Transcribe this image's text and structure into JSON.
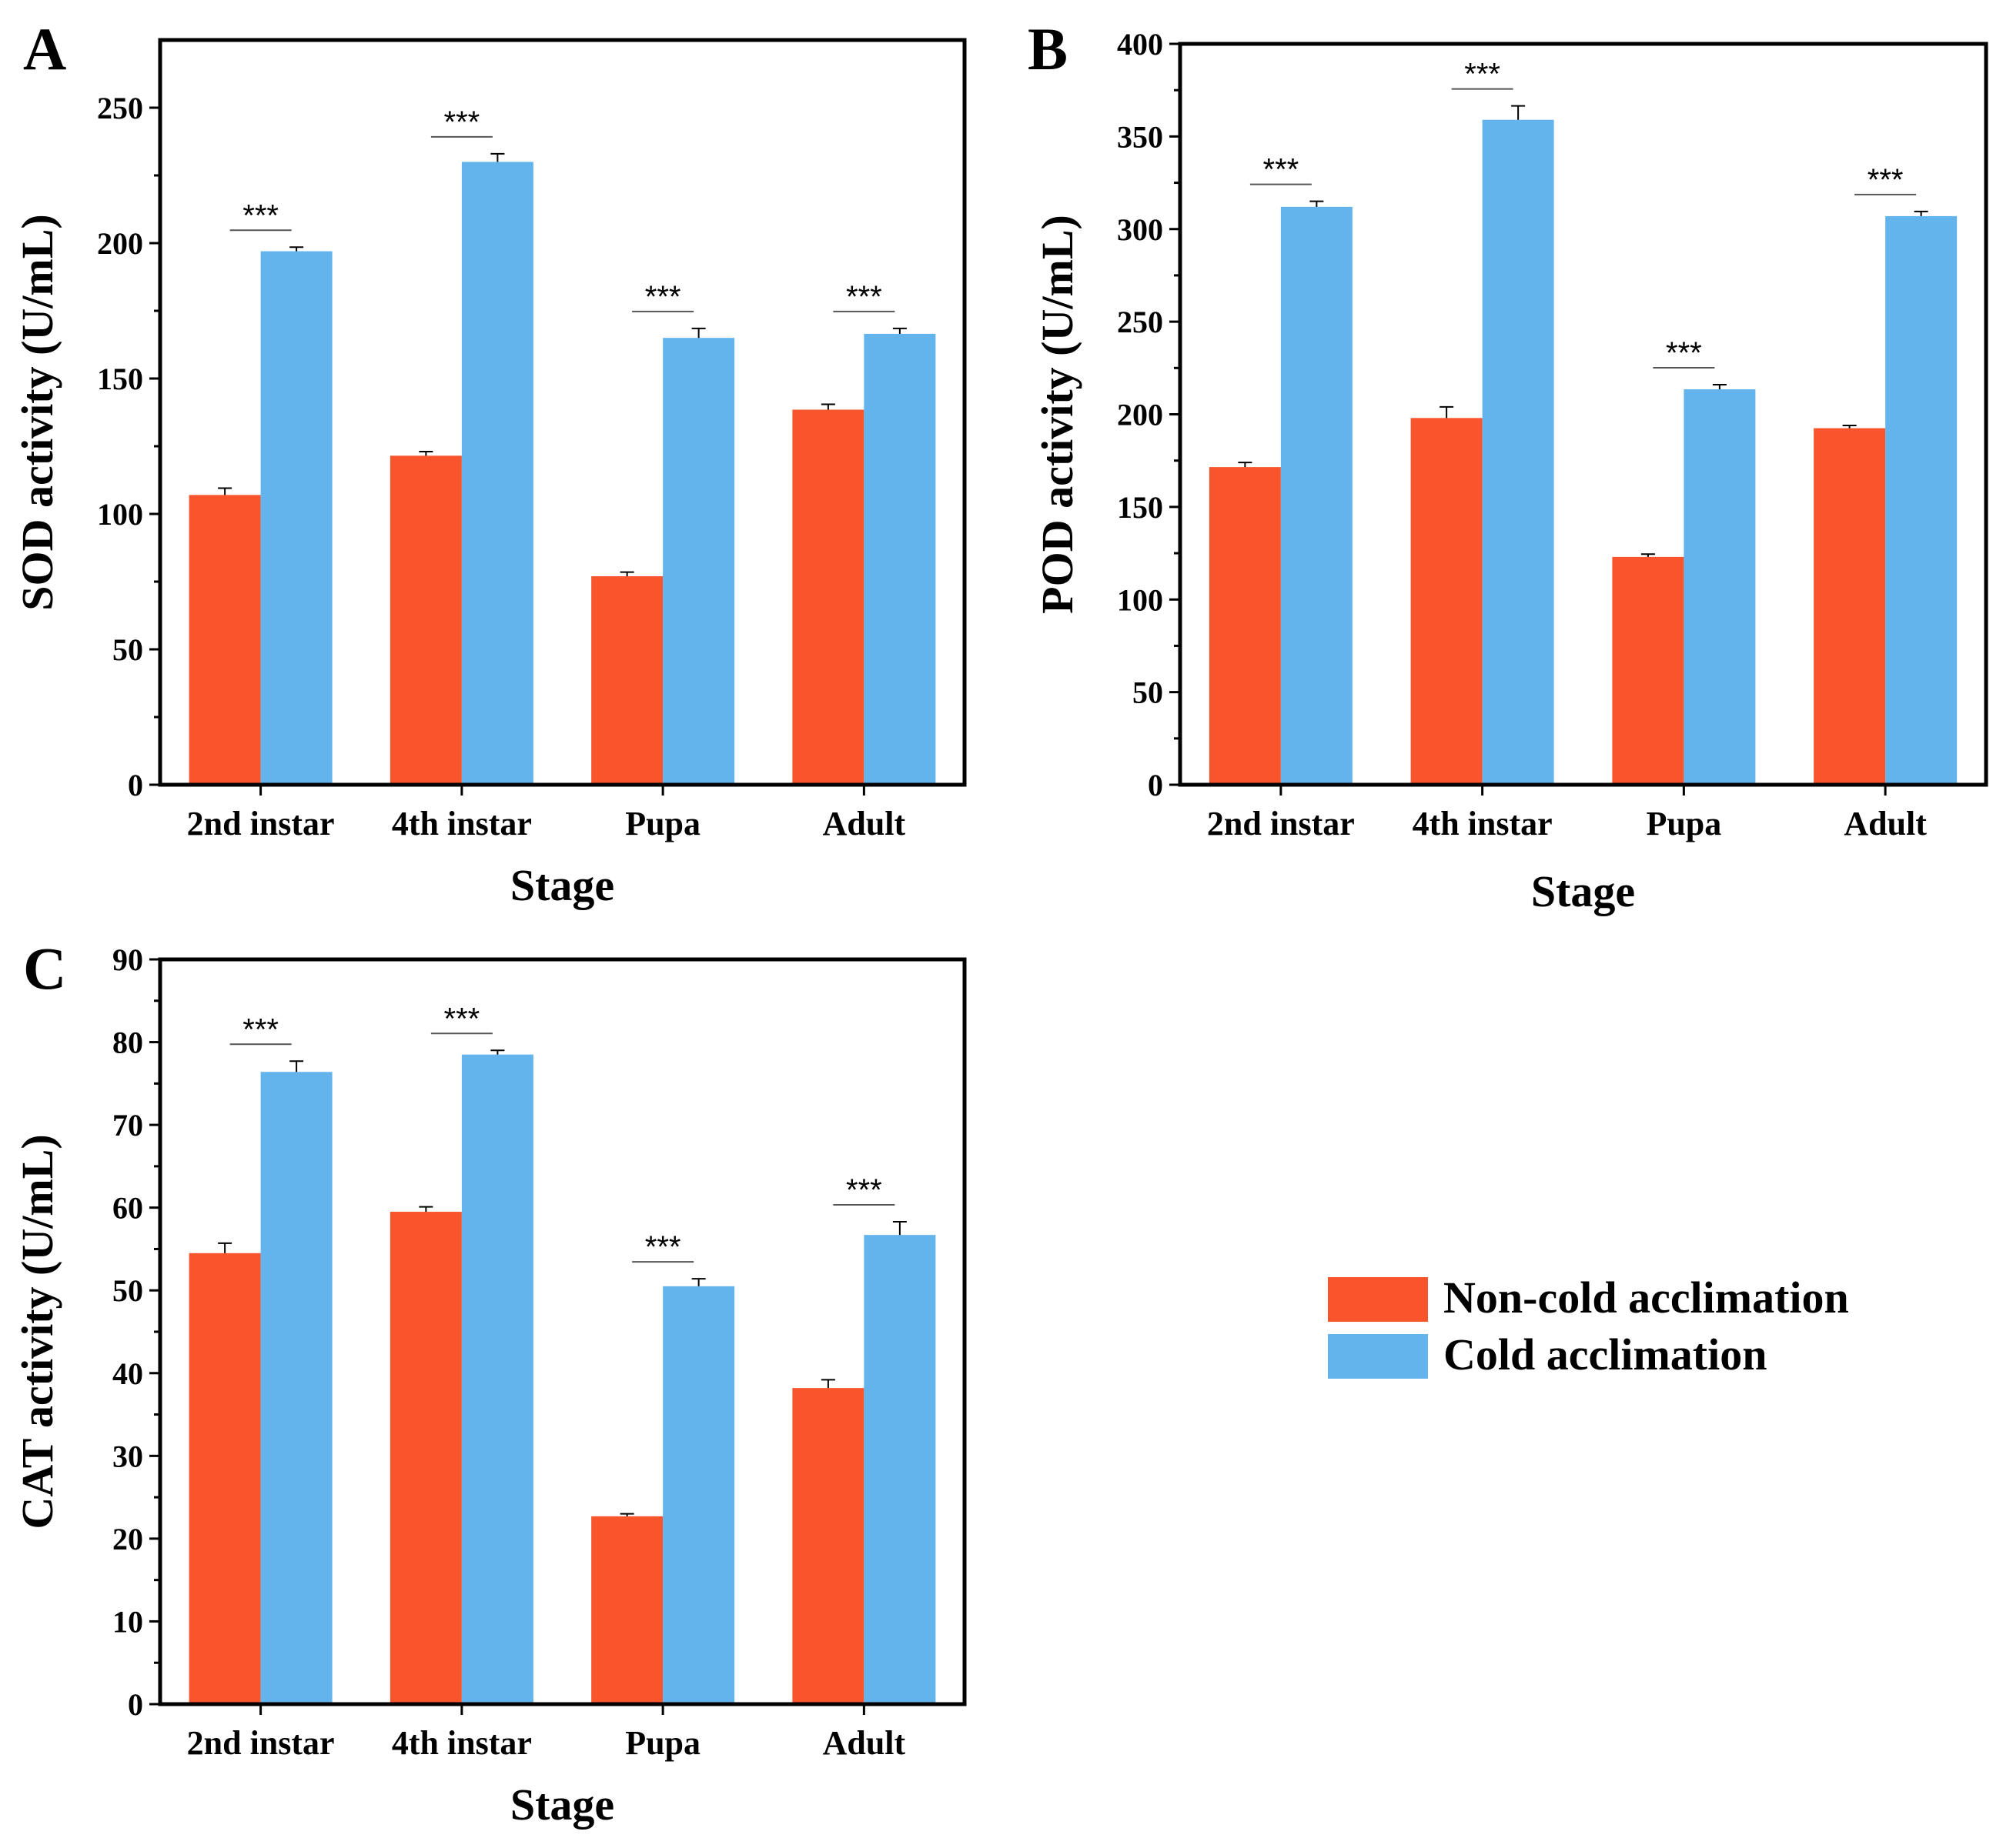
{
  "figure": {
    "legend": {
      "position": "right-middle",
      "items": [
        {
          "label": "Non-cold acclimation",
          "color": "#F8552C"
        },
        {
          "label": "Cold acclimation",
          "color": "#63B3EC"
        }
      ]
    }
  },
  "chart_data": [
    {
      "panel_label": "A",
      "type": "bar",
      "xlabel": "Stage",
      "ylabel": "SOD activity (U/mL)",
      "ylim": [
        0,
        275
      ],
      "yticks": [
        0,
        50,
        100,
        150,
        200,
        250
      ],
      "categories": [
        "2nd instar",
        "4th instar",
        "Pupa",
        "Adult"
      ],
      "series": [
        {
          "name": "Non-cold acclimation",
          "color": "#F8552C",
          "values": [
            107,
            121.5,
            77,
            138.5
          ],
          "errors": [
            2.5,
            1.5,
            1.5,
            2
          ]
        },
        {
          "name": "Cold acclimation",
          "color": "#63B3EC",
          "values": [
            197,
            230,
            165,
            166.5
          ],
          "errors": [
            1.5,
            3,
            3.5,
            2
          ]
        }
      ],
      "significance": [
        "***",
        "***",
        "***",
        "***"
      ]
    },
    {
      "panel_label": "B",
      "type": "bar",
      "xlabel": "Stage",
      "ylabel": "POD activity (U/mL)",
      "ylim": [
        0,
        400
      ],
      "yticks": [
        0,
        50,
        100,
        150,
        200,
        250,
        300,
        350,
        400
      ],
      "categories": [
        "2nd instar",
        "4th instar",
        "Pupa",
        "Adult"
      ],
      "series": [
        {
          "name": "Non-cold acclimation",
          "color": "#F8552C",
          "values": [
            171.5,
            198,
            123,
            192.5
          ],
          "errors": [
            2.5,
            6,
            1.5,
            1.5
          ]
        },
        {
          "name": "Cold acclimation",
          "color": "#63B3EC",
          "values": [
            312,
            359,
            213.5,
            307
          ],
          "errors": [
            3,
            7.5,
            2.5,
            2.5
          ]
        }
      ],
      "significance": [
        "***",
        "***",
        "***",
        "***"
      ]
    },
    {
      "panel_label": "C",
      "type": "bar",
      "xlabel": "Stage",
      "ylabel": "CAT activity (U/mL)",
      "ylim": [
        0,
        90
      ],
      "yticks": [
        0,
        10,
        20,
        30,
        40,
        50,
        60,
        70,
        80,
        90
      ],
      "categories": [
        "2nd instar",
        "4th instar",
        "Pupa",
        "Adult"
      ],
      "series": [
        {
          "name": "Non-cold acclimation",
          "color": "#F8552C",
          "values": [
            54.5,
            59.5,
            22.7,
            38.2
          ],
          "errors": [
            1.2,
            0.6,
            0.3,
            1
          ]
        },
        {
          "name": "Cold acclimation",
          "color": "#63B3EC",
          "values": [
            76.4,
            78.5,
            50.5,
            56.7
          ],
          "errors": [
            1.3,
            0.5,
            0.9,
            1.6
          ]
        }
      ],
      "significance": [
        "***",
        "***",
        "***",
        "***"
      ]
    }
  ]
}
